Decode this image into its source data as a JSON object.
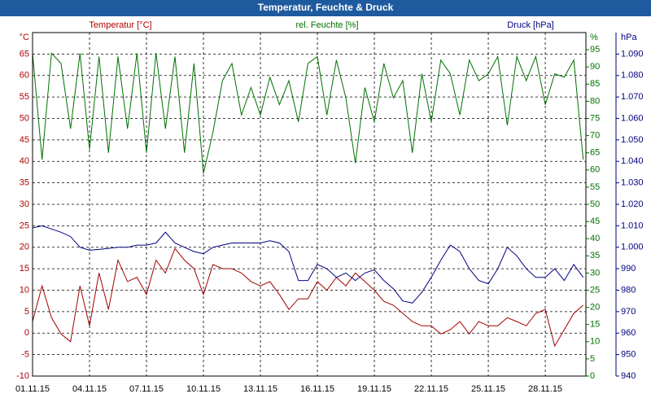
{
  "chart_data": {
    "type": "line",
    "title": "Temperatur, Feuchte & Druck",
    "y_label": "Temperatur [°C]",
    "y2_label": "rel. Feuchte [%]",
    "y3_label": "Druck [hPa]",
    "y_unit": "°C",
    "y2_unit": "%",
    "y3_unit": "hPa",
    "grid": true,
    "xlim": [
      0,
      29.14
    ],
    "xticks": [
      {
        "value": 0,
        "label": "01.11.15"
      },
      {
        "value": 3,
        "label": "04.11.15"
      },
      {
        "value": 6,
        "label": "07.11.15"
      },
      {
        "value": 9,
        "label": "10.11.15"
      },
      {
        "value": 12,
        "label": "13.11.15"
      },
      {
        "value": 15,
        "label": "16.11.15"
      },
      {
        "value": 18,
        "label": "19.11.15"
      },
      {
        "value": 21,
        "label": "22.11.15"
      },
      {
        "value": 24,
        "label": "25.11.15"
      },
      {
        "value": 27,
        "label": "28.11.15"
      }
    ],
    "ylim": [
      -10,
      70
    ],
    "yticks": [
      -10,
      -5,
      0,
      5,
      10,
      15,
      20,
      25,
      30,
      35,
      40,
      45,
      50,
      55,
      60,
      65
    ],
    "y2lim": [
      0,
      100
    ],
    "y2ticks": [
      0,
      5,
      10,
      15,
      20,
      25,
      30,
      35,
      40,
      45,
      50,
      55,
      60,
      65,
      70,
      75,
      80,
      85,
      90,
      95
    ],
    "y3lim": [
      940,
      1100
    ],
    "y3ticks": [
      940,
      950,
      960,
      970,
      980,
      990,
      {
        "value": 1000,
        "label": "1.000"
      },
      {
        "value": 1010,
        "label": "1.010"
      },
      {
        "value": 1020,
        "label": "1.020"
      },
      {
        "value": 1030,
        "label": "1.030"
      },
      {
        "value": 1040,
        "label": "1.040"
      },
      {
        "value": 1050,
        "label": "1.050"
      },
      {
        "value": 1060,
        "label": "1.060"
      },
      {
        "value": 1070,
        "label": "1.070"
      },
      {
        "value": 1080,
        "label": "1.080"
      },
      {
        "value": 1090,
        "label": "1.090"
      }
    ],
    "x": [
      0,
      0.5,
      1,
      1.5,
      2,
      2.5,
      3,
      3.5,
      4,
      4.5,
      5,
      5.5,
      6,
      6.5,
      7,
      7.5,
      8,
      8.5,
      9,
      9.5,
      10,
      10.5,
      11,
      11.5,
      12,
      12.5,
      13,
      13.5,
      14,
      14.5,
      15,
      15.5,
      16,
      16.5,
      17,
      17.5,
      18,
      18.5,
      19,
      19.5,
      20,
      20.5,
      21,
      21.5,
      22,
      22.5,
      23,
      23.5,
      24,
      24.5,
      25,
      25.5,
      26,
      26.5,
      27,
      27.5,
      28,
      28.5,
      29
    ],
    "series": [
      {
        "name": "Temperatur [°C]",
        "axis": "y",
        "color": "#a00000",
        "values": [
          2.7,
          11,
          3.6,
          -0.2,
          -2,
          11,
          1.7,
          14,
          5.5,
          17,
          12,
          13,
          9,
          17,
          14,
          19.7,
          17,
          15,
          9,
          16,
          15,
          15,
          14,
          12,
          11,
          12,
          9,
          5.5,
          8,
          8,
          12,
          10,
          13,
          11,
          14,
          12,
          10,
          7.4,
          6.5,
          4.6,
          2.7,
          1.7,
          1.7,
          -0.2,
          0.8,
          2.7,
          -0.2,
          2.7,
          1.7,
          1.7,
          3.6,
          2.7,
          1.7,
          4.6,
          5.5,
          -3,
          0.8,
          4.6,
          6.5
        ]
      },
      {
        "name": "rel. Feuchte [%]",
        "axis": "y2",
        "color": "#007000",
        "values": [
          94,
          63,
          94,
          91,
          72,
          94,
          66,
          93,
          65,
          93,
          72,
          94,
          65,
          94,
          72,
          93,
          65,
          91,
          59,
          71,
          86,
          91,
          76,
          84,
          76,
          87,
          79,
          86,
          74,
          91,
          93,
          76,
          92,
          81,
          62,
          84,
          74,
          91,
          81,
          86,
          65,
          88,
          74,
          92,
          88,
          76,
          92,
          86,
          88,
          93,
          73,
          93,
          86,
          93,
          79,
          88,
          87,
          92,
          63
        ]
      },
      {
        "name": "Druck [hPa]",
        "axis": "y3",
        "color": "#000080",
        "values": [
          1009,
          1010,
          1008.5,
          1007,
          1005,
          1000,
          998.6,
          999,
          999.5,
          1000,
          1000,
          1001,
          1001,
          1002,
          1007,
          1002,
          1000,
          998,
          997,
          1000,
          1001,
          1002,
          1002,
          1002,
          1002,
          1003,
          1002,
          998,
          984.5,
          984.5,
          992,
          990,
          986,
          988,
          984.5,
          988,
          989.5,
          984.5,
          980.7,
          975,
          974,
          979,
          986,
          994,
          1001,
          998,
          990,
          984.5,
          983,
          990,
          1000,
          996,
          990,
          986,
          986,
          990,
          984.5,
          992,
          986
        ]
      }
    ]
  }
}
